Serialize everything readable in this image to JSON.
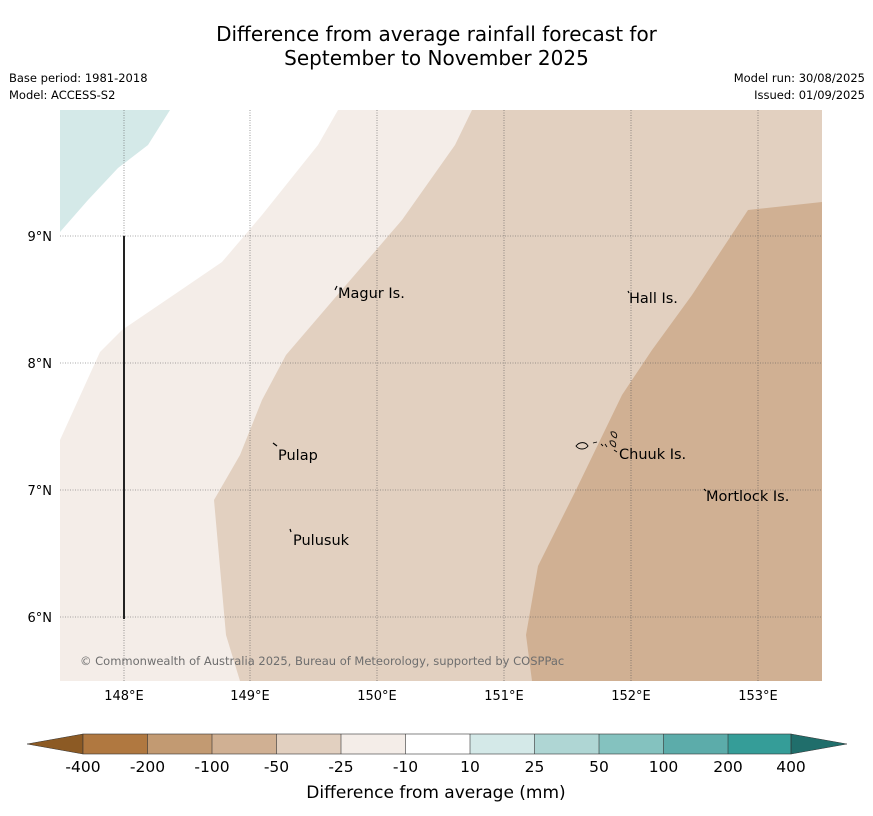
{
  "title": {
    "line1": "Difference from average rainfall forecast for",
    "line2": "September to November 2025"
  },
  "meta": {
    "base_period": "Base period: 1981-2018",
    "model": "Model: ACCESS-S2",
    "model_run": "Model run: 30/08/2025",
    "issued": "Issued: 01/09/2025"
  },
  "map": {
    "lat_labels": [
      "9°N",
      "8°N",
      "7°N",
      "6°N"
    ],
    "lon_labels": [
      "148°E",
      "149°E",
      "150°E",
      "151°E",
      "152°E",
      "153°E"
    ],
    "places": {
      "magur": "Magur Is.",
      "hall": "Hall Is.",
      "pulap": "Pulap",
      "chuuk": "Chuuk Is.",
      "mortlock": "Mortlock Is.",
      "pulusuk": "Pulusuk"
    },
    "copyright": "© Commonwealth of Australia 2025, Bureau of Meteorology, supported by COSPPac"
  },
  "colorbar": {
    "ticks": [
      "-400",
      "-200",
      "-100",
      "-50",
      "-25",
      "-10",
      "10",
      "25",
      "50",
      "100",
      "200",
      "400"
    ],
    "label": "Difference from average (mm)",
    "colors": {
      "below_min": "#8c5a24",
      "neg400_200": "#b07840",
      "neg200_100": "#c29a72",
      "neg100_50": "#d0b093",
      "neg50_25": "#e2d0c0",
      "neg25_10": "#f4ede8",
      "neg10_10": "#ffffff",
      "pos10_25": "#d4e9e8",
      "pos25_50": "#afd6d4",
      "pos50_100": "#84c2bf",
      "pos100_200": "#5cacaa",
      "pos200_400": "#359d98",
      "above_max": "#206e6b"
    }
  }
}
